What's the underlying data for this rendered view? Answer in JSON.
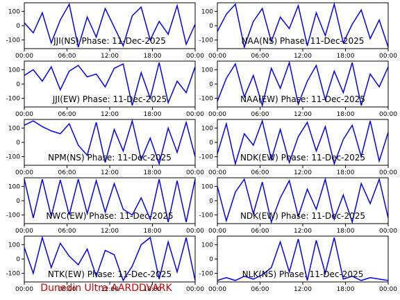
{
  "chart_data": [
    {
      "type": "line",
      "title": "JJI(NS) Phase: 11-Dec-2025",
      "ylim": [
        -160,
        160
      ],
      "yticks": [
        100,
        0,
        -100
      ],
      "xticks": [
        "00:00",
        "06:00",
        "12:00",
        "18:00",
        "00:00"
      ],
      "series": [
        {
          "values": [
            20,
            -50,
            90,
            -120,
            40,
            150,
            -150,
            60,
            -80,
            120,
            -10,
            -140,
            70,
            130,
            -100,
            30,
            -60,
            140,
            -130,
            10
          ]
        }
      ]
    },
    {
      "type": "line",
      "title": "NAA(NS) Phase: 11-Dec-2025",
      "ylim": [
        -160,
        160
      ],
      "yticks": [
        100,
        0,
        -100
      ],
      "xticks": [
        "00:00",
        "06:00",
        "12:00",
        "18:00",
        "00:00"
      ],
      "series": [
        {
          "values": [
            -40,
            80,
            150,
            -150,
            30,
            120,
            -110,
            60,
            -20,
            140,
            -140,
            90,
            -70,
            150,
            -120,
            10,
            110,
            -90,
            40,
            -150
          ]
        }
      ]
    },
    {
      "type": "line",
      "title": "JJI(EW) Phase: 11-Dec-2025",
      "ylim": [
        -160,
        160
      ],
      "yticks": [
        100,
        0,
        -100
      ],
      "xticks": [
        "00:00",
        "06:00",
        "12:00",
        "18:00",
        "00:00"
      ],
      "series": [
        {
          "values": [
            60,
            100,
            20,
            120,
            -40,
            90,
            130,
            50,
            70,
            -20,
            110,
            140,
            -150,
            80,
            -100,
            150,
            -130,
            20,
            -60,
            120
          ]
        }
      ]
    },
    {
      "type": "line",
      "title": "NAA(EW) Phase: 11-Dec-2025",
      "ylim": [
        -160,
        160
      ],
      "yticks": [
        100,
        0,
        -100
      ],
      "xticks": [
        "00:00",
        "06:00",
        "12:00",
        "18:00",
        "00:00"
      ],
      "series": [
        {
          "values": [
            -120,
            40,
            140,
            -90,
            60,
            -150,
            110,
            -30,
            150,
            -140,
            20,
            130,
            -110,
            90,
            -60,
            150,
            -150,
            70,
            -20,
            120
          ]
        }
      ]
    },
    {
      "type": "line",
      "title": "NPM(NS) Phase: 11-Dec-2025",
      "ylim": [
        -160,
        160
      ],
      "yticks": [
        100,
        0,
        -100
      ],
      "xticks": [
        "00:00",
        "06:00",
        "12:00",
        "18:00",
        "00:00"
      ],
      "series": [
        {
          "values": [
            120,
            150,
            110,
            80,
            60,
            130,
            -20,
            -90,
            140,
            -140,
            90,
            -60,
            150,
            -120,
            30,
            -150,
            100,
            -70,
            140,
            -100
          ]
        }
      ]
    },
    {
      "type": "line",
      "title": "NDK(EW) Phase: 11-Dec-2025",
      "ylim": [
        -160,
        160
      ],
      "yticks": [
        100,
        0,
        -100
      ],
      "xticks": [
        "00:00",
        "06:00",
        "12:00",
        "18:00",
        "00:00"
      ],
      "series": [
        {
          "values": [
            -80,
            130,
            -150,
            60,
            -20,
            150,
            -120,
            90,
            -140,
            40,
            140,
            -60,
            110,
            -150,
            20,
            120,
            -100,
            150,
            -130,
            70
          ]
        }
      ]
    },
    {
      "type": "line",
      "title": "NWC(EW) Phase: 11-Dec-2025",
      "ylim": [
        -160,
        160
      ],
      "yticks": [
        100,
        0,
        -100
      ],
      "xticks": [
        "00:00",
        "06:00",
        "12:00",
        "18:00",
        "00:00"
      ],
      "series": [
        {
          "values": [
            150,
            -120,
            150,
            -110,
            145,
            -100,
            150,
            -90,
            140,
            -80,
            120,
            -60,
            -100,
            20,
            -130,
            150,
            -150,
            140,
            -150,
            150
          ]
        }
      ]
    },
    {
      "type": "line",
      "title": "NDK(EW) Phase: 11-Dec-2025",
      "ylim": [
        -160,
        160
      ],
      "yticks": [
        100,
        0,
        -100
      ],
      "xticks": [
        "00:00",
        "06:00",
        "12:00",
        "18:00",
        "00:00"
      ],
      "series": [
        {
          "values": [
            100,
            -140,
            60,
            150,
            -90,
            130,
            -150,
            20,
            140,
            -110,
            80,
            -60,
            150,
            -130,
            40,
            -150,
            120,
            -20,
            150,
            -120
          ]
        }
      ]
    },
    {
      "type": "line",
      "title": "NTK(EW) Phase: 11-Dec-2025",
      "ylim": [
        -160,
        160
      ],
      "yticks": [
        100,
        0,
        -100
      ],
      "xticks": [
        "00:00",
        "06:00",
        "12:00",
        "18:00",
        "00:00"
      ],
      "series": [
        {
          "values": [
            80,
            -100,
            150,
            -60,
            110,
            20,
            -40,
            70,
            -120,
            60,
            30,
            -150,
            -50,
            100,
            150,
            -140,
            120,
            -90,
            150,
            -150
          ]
        }
      ]
    },
    {
      "type": "line",
      "title": "NLK(NS) Phase: 11-Dec-2025",
      "ylim": [
        -160,
        160
      ],
      "yticks": [
        100,
        0,
        -100
      ],
      "xticks": [
        "00:00",
        "06:00",
        "12:00",
        "18:00",
        "00:00"
      ],
      "series": [
        {
          "values": [
            -150,
            -130,
            -150,
            -120,
            -140,
            -110,
            -60,
            120,
            -90,
            140,
            -150,
            130,
            -100,
            150,
            -140,
            -120,
            -150,
            -130,
            -140,
            -150
          ]
        }
      ]
    }
  ],
  "footer": "Dunedin Ultra AARDDVARK",
  "colors": {
    "trace": "#0000ff",
    "footer": "#cc0000",
    "axis": "#000000"
  }
}
